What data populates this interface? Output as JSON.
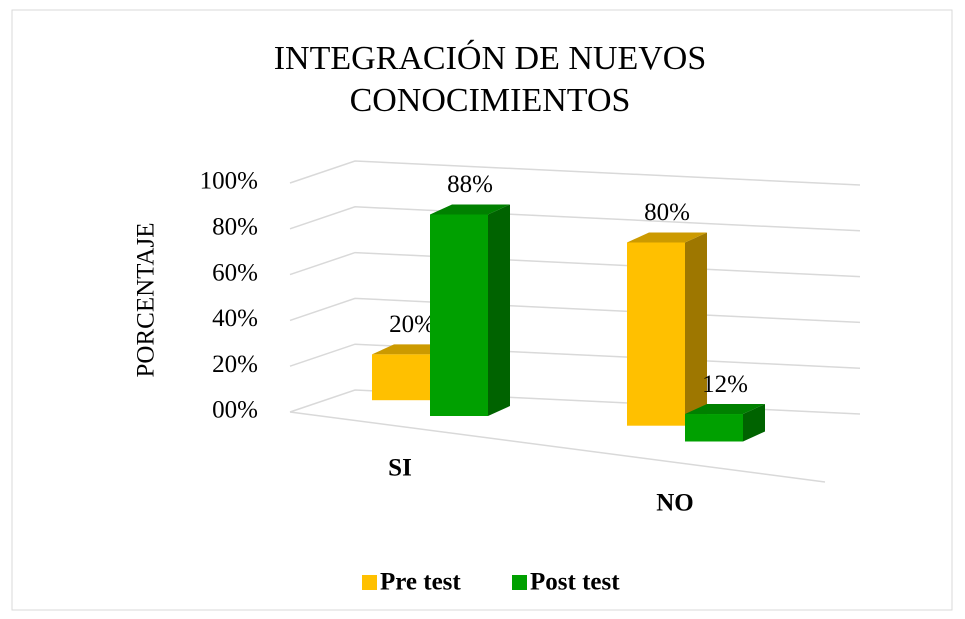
{
  "chart_data": {
    "type": "bar3d",
    "title": "INTEGRACIÓN DE NUEVOS CONOCIMIENTOS",
    "y_label": "PORCENTAJE",
    "categories": [
      "SI",
      "NO"
    ],
    "series": [
      {
        "name": "Pre test",
        "color": "#ffc000",
        "values": [
          20,
          80
        ],
        "value_labels": [
          "20%",
          "80%"
        ]
      },
      {
        "name": "Post test",
        "color": "#00a000",
        "values": [
          88,
          12
        ],
        "value_labels": [
          "88%",
          "12%"
        ]
      }
    ],
    "ylim": [
      0,
      100
    ],
    "yticks": [
      {
        "value": 0,
        "label": "00%"
      },
      {
        "value": 20,
        "label": "20%"
      },
      {
        "value": 40,
        "label": "40%"
      },
      {
        "value": 60,
        "label": "60%"
      },
      {
        "value": 80,
        "label": "80%"
      },
      {
        "value": 100,
        "label": "100%"
      }
    ],
    "grid": true,
    "legend": "bottom"
  }
}
